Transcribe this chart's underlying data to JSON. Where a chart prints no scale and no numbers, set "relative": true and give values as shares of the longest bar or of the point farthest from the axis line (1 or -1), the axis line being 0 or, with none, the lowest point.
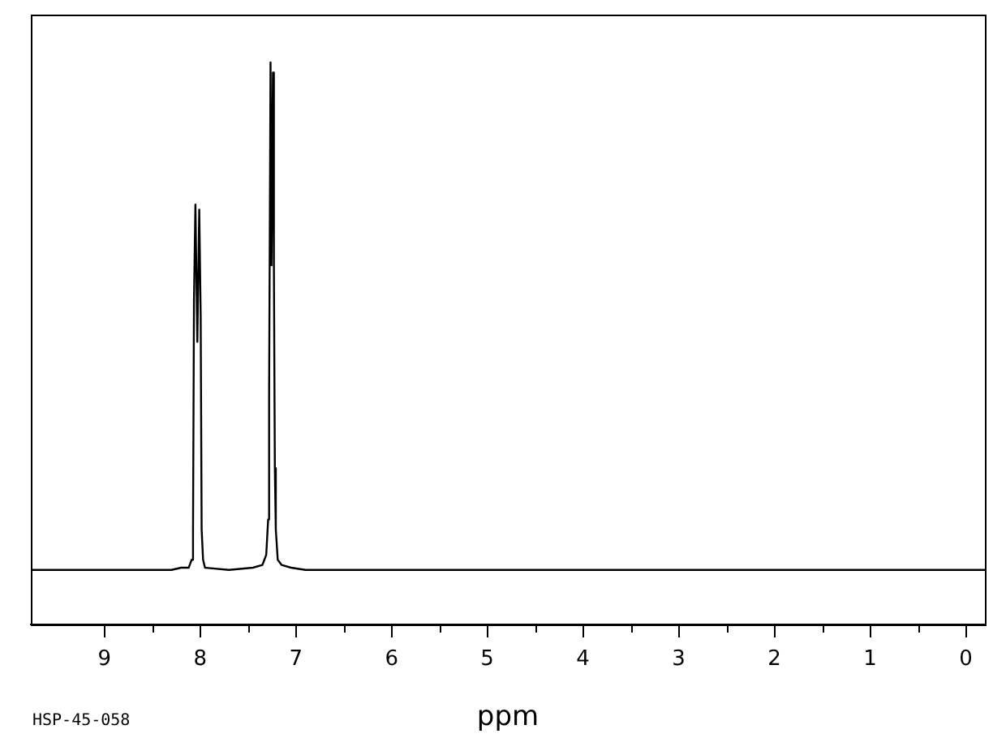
{
  "chart_data": {
    "type": "line",
    "relative": true,
    "xlabel": "ppm",
    "annotations": [
      "HSP-45-058"
    ],
    "x": [
      9.77,
      8.3,
      8.2,
      8.12,
      8.09,
      8.075,
      8.065,
      8.05,
      8.03,
      8.01,
      7.995,
      7.985,
      7.97,
      7.95,
      7.7,
      7.45,
      7.35,
      7.31,
      7.29,
      7.28,
      7.265,
      7.255,
      7.24,
      7.23,
      7.22,
      7.21,
      7.19,
      7.15,
      7.05,
      6.9,
      -0.2
    ],
    "series": [
      {
        "color": "#000000",
        "values": [
          0.097,
          0.097,
          0.101,
          0.101,
          0.115,
          0.169,
          0.576,
          0.747,
          0.503,
          0.738,
          0.548,
          0.169,
          0.115,
          0.101,
          0.097,
          0.101,
          0.106,
          0.124,
          0.187,
          0.413,
          1.0,
          0.639,
          0.982,
          0.639,
          0.278,
          0.169,
          0.115,
          0.106,
          0.101,
          0.097,
          0.097
        ]
      }
    ],
    "xlim": [
      9.77,
      -0.2
    ],
    "xticks": [
      9,
      {
        "value": 8.5,
        "label": null
      },
      8,
      {
        "value": 7.5,
        "label": null
      },
      7,
      {
        "value": 6.5,
        "label": null
      },
      6,
      {
        "value": 5.5,
        "label": null
      },
      5,
      {
        "value": 4.5,
        "label": null
      },
      4,
      {
        "value": 3.5,
        "label": null
      },
      3,
      {
        "value": 2.5,
        "label": null
      },
      2,
      {
        "value": 1.5,
        "label": null
      },
      1,
      {
        "value": 0.5,
        "label": null
      },
      0
    ],
    "grid": false,
    "legend": false,
    "marker": "none",
    "line_style": "solid"
  }
}
